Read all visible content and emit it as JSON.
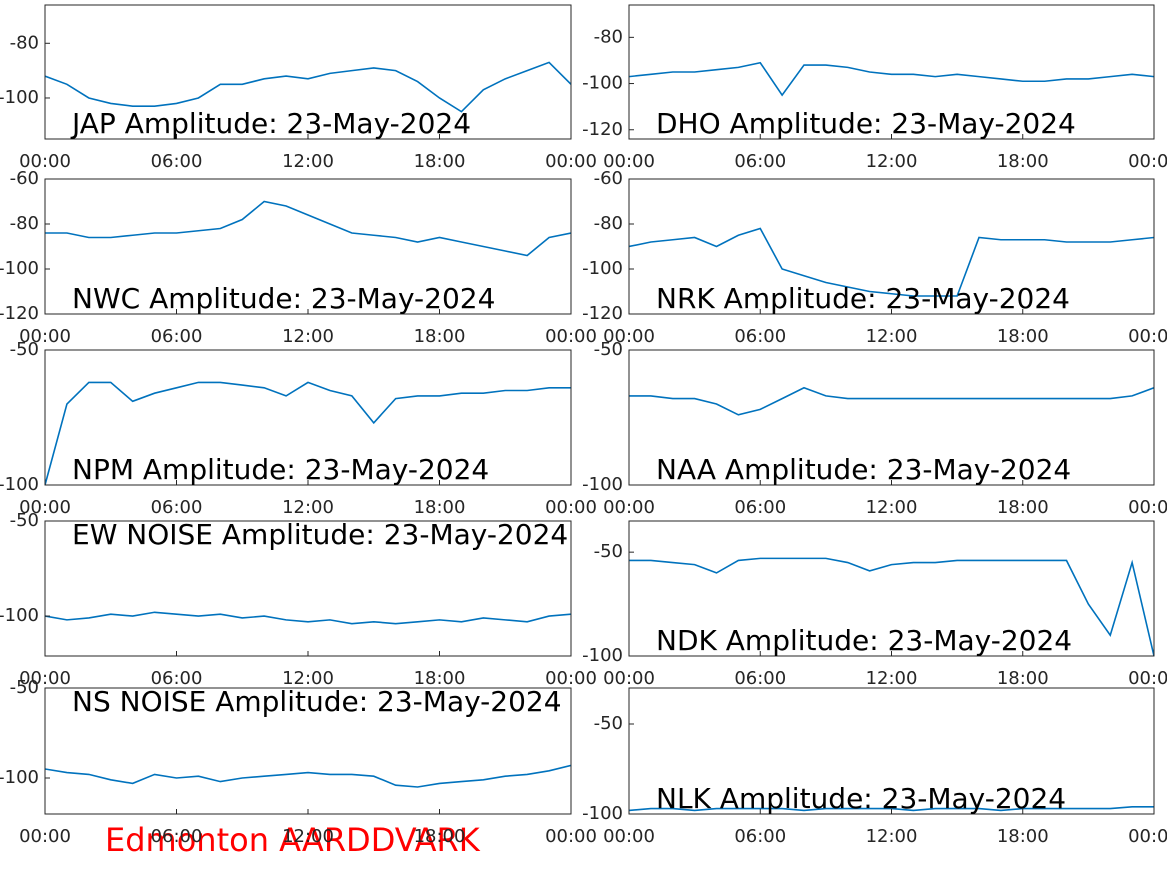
{
  "chart_data": [
    {
      "type": "line",
      "title": "JAP Amplitude: 23-May-2024",
      "x": [
        0,
        1,
        2,
        3,
        4,
        5,
        6,
        7,
        8,
        9,
        10,
        11,
        12,
        13,
        14,
        15,
        16,
        17,
        18,
        19,
        20,
        21,
        22,
        23,
        24
      ],
      "xlim": [
        0,
        24
      ],
      "xticks": [
        {
          "value": 0,
          "label": "00:00"
        },
        {
          "value": 6,
          "label": "06:00"
        },
        {
          "value": 12,
          "label": "12:00"
        },
        {
          "value": 18,
          "label": "18:00"
        },
        {
          "value": 24,
          "label": "00:00"
        }
      ],
      "ylim": [
        -115,
        -66
      ],
      "yticks": [
        -100,
        -80
      ],
      "color": "#0072bd",
      "values": [
        -92,
        -95,
        -100,
        -102,
        -103,
        -103,
        -102,
        -100,
        -95,
        -95,
        -93,
        -92,
        -93,
        -91,
        -90,
        -89,
        -90,
        -94,
        -100,
        -105,
        -97,
        -93,
        -90,
        -87,
        -95
      ]
    },
    {
      "type": "line",
      "title": "DHO Amplitude: 23-May-2024",
      "x": [
        0,
        1,
        2,
        3,
        4,
        5,
        6,
        7,
        8,
        9,
        10,
        11,
        12,
        13,
        14,
        15,
        16,
        17,
        18,
        19,
        20,
        21,
        22,
        23,
        24
      ],
      "xlim": [
        0,
        24
      ],
      "xticks": [
        {
          "value": 0,
          "label": "00:00"
        },
        {
          "value": 6,
          "label": "06:00"
        },
        {
          "value": 12,
          "label": "12:00"
        },
        {
          "value": 18,
          "label": "18:00"
        },
        {
          "value": 24,
          "label": "00:00"
        }
      ],
      "ylim": [
        -124,
        -66
      ],
      "yticks": [
        -120,
        -100,
        -80
      ],
      "color": "#0072bd",
      "values": [
        -97,
        -96,
        -95,
        -95,
        -94,
        -93,
        -91,
        -105,
        -92,
        -92,
        -93,
        -95,
        -96,
        -96,
        -97,
        -96,
        -97,
        -98,
        -99,
        -99,
        -98,
        -98,
        -97,
        -96,
        -97
      ]
    },
    {
      "type": "line",
      "title": "NWC Amplitude: 23-May-2024",
      "x": [
        0,
        1,
        2,
        3,
        4,
        5,
        6,
        7,
        8,
        9,
        10,
        11,
        12,
        13,
        14,
        15,
        16,
        17,
        18,
        19,
        20,
        21,
        22,
        23,
        24
      ],
      "xlim": [
        0,
        24
      ],
      "xticks": [
        {
          "value": 0,
          "label": "00:00"
        },
        {
          "value": 6,
          "label": "06:00"
        },
        {
          "value": 12,
          "label": "12:00"
        },
        {
          "value": 18,
          "label": "18:00"
        },
        {
          "value": 24,
          "label": "00:00"
        }
      ],
      "ylim": [
        -120,
        -60
      ],
      "yticks": [
        -120,
        -100,
        -80,
        -60
      ],
      "color": "#0072bd",
      "values": [
        -84,
        -84,
        -86,
        -86,
        -85,
        -84,
        -84,
        -83,
        -82,
        -78,
        -70,
        -72,
        -76,
        -80,
        -84,
        -85,
        -86,
        -88,
        -86,
        -88,
        -90,
        -92,
        -94,
        -86,
        -84
      ]
    },
    {
      "type": "line",
      "title": "NRK Amplitude: 23-May-2024",
      "x": [
        0,
        1,
        2,
        3,
        4,
        5,
        6,
        7,
        8,
        9,
        10,
        11,
        12,
        13,
        14,
        15,
        16,
        17,
        18,
        19,
        20,
        21,
        22,
        23,
        24
      ],
      "xlim": [
        0,
        24
      ],
      "xticks": [
        {
          "value": 0,
          "label": "00:00"
        },
        {
          "value": 6,
          "label": "06:00"
        },
        {
          "value": 12,
          "label": "12:00"
        },
        {
          "value": 18,
          "label": "18:00"
        },
        {
          "value": 24,
          "label": "00:00"
        }
      ],
      "ylim": [
        -120,
        -60
      ],
      "yticks": [
        -120,
        -100,
        -80,
        -60
      ],
      "color": "#0072bd",
      "values": [
        -90,
        -88,
        -87,
        -86,
        -90,
        -85,
        -82,
        -100,
        -103,
        -106,
        -108,
        -110,
        -111,
        -112,
        -112,
        -112,
        -86,
        -87,
        -87,
        -87,
        -88,
        -88,
        -88,
        -87,
        -86
      ]
    },
    {
      "type": "line",
      "title": "NPM Amplitude: 23-May-2024",
      "x": [
        0,
        1,
        2,
        3,
        4,
        5,
        6,
        7,
        8,
        9,
        10,
        11,
        12,
        13,
        14,
        15,
        16,
        17,
        18,
        19,
        20,
        21,
        22,
        23,
        24
      ],
      "xlim": [
        0,
        24
      ],
      "xticks": [
        {
          "value": 0,
          "label": "00:00"
        },
        {
          "value": 6,
          "label": "06:00"
        },
        {
          "value": 12,
          "label": "12:00"
        },
        {
          "value": 18,
          "label": "18:00"
        },
        {
          "value": 24,
          "label": "00:00"
        }
      ],
      "ylim": [
        -100,
        -50
      ],
      "yticks": [
        -100,
        -50
      ],
      "color": "#0072bd",
      "values": [
        -100,
        -70,
        -62,
        -62,
        -69,
        -66,
        -64,
        -62,
        -62,
        -63,
        -64,
        -67,
        -62,
        -65,
        -67,
        -77,
        -68,
        -67,
        -67,
        -66,
        -66,
        -65,
        -65,
        -64,
        -64
      ]
    },
    {
      "type": "line",
      "title": "NAA Amplitude: 23-May-2024",
      "x": [
        0,
        1,
        2,
        3,
        4,
        5,
        6,
        7,
        8,
        9,
        10,
        11,
        12,
        13,
        14,
        15,
        16,
        17,
        18,
        19,
        20,
        21,
        22,
        23,
        24
      ],
      "xlim": [
        0,
        24
      ],
      "xticks": [
        {
          "value": 0,
          "label": "00:00"
        },
        {
          "value": 6,
          "label": "06:00"
        },
        {
          "value": 12,
          "label": "12:00"
        },
        {
          "value": 18,
          "label": "18:00"
        },
        {
          "value": 24,
          "label": "00:00"
        }
      ],
      "ylim": [
        -100,
        -50
      ],
      "yticks": [
        -100,
        -50
      ],
      "color": "#0072bd",
      "values": [
        -67,
        -67,
        -68,
        -68,
        -70,
        -74,
        -72,
        -68,
        -64,
        -67,
        -68,
        -68,
        -68,
        -68,
        -68,
        -68,
        -68,
        -68,
        -68,
        -68,
        -68,
        -68,
        -68,
        -67,
        -64
      ]
    },
    {
      "type": "line",
      "title": "EW NOISE Amplitude: 23-May-2024",
      "x": [
        0,
        1,
        2,
        3,
        4,
        5,
        6,
        7,
        8,
        9,
        10,
        11,
        12,
        13,
        14,
        15,
        16,
        17,
        18,
        19,
        20,
        21,
        22,
        23,
        24
      ],
      "xlim": [
        0,
        24
      ],
      "xticks": [
        {
          "value": 0,
          "label": "00:00"
        },
        {
          "value": 6,
          "label": "06:00"
        },
        {
          "value": 12,
          "label": "12:00"
        },
        {
          "value": 18,
          "label": "18:00"
        },
        {
          "value": 24,
          "label": "00:00"
        }
      ],
      "ylim": [
        -121,
        -50
      ],
      "yticks": [
        -100,
        -50
      ],
      "color": "#0072bd",
      "values": [
        -100,
        -102,
        -101,
        -99,
        -100,
        -98,
        -99,
        -100,
        -99,
        -101,
        -100,
        -102,
        -103,
        -102,
        -104,
        -103,
        -104,
        -103,
        -102,
        -103,
        -101,
        -102,
        -103,
        -100,
        -99
      ]
    },
    {
      "type": "line",
      "title": "NDK Amplitude: 23-May-2024",
      "x": [
        0,
        1,
        2,
        3,
        4,
        5,
        6,
        7,
        8,
        9,
        10,
        11,
        12,
        13,
        14,
        15,
        16,
        17,
        18,
        19,
        20,
        21,
        22,
        23,
        24
      ],
      "xlim": [
        0,
        24
      ],
      "xticks": [
        {
          "value": 0,
          "label": "00:00"
        },
        {
          "value": 6,
          "label": "06:00"
        },
        {
          "value": 12,
          "label": "12:00"
        },
        {
          "value": 18,
          "label": "18:00"
        },
        {
          "value": 24,
          "label": "00:00"
        }
      ],
      "ylim": [
        -100,
        -35
      ],
      "yticks": [
        -100,
        -50
      ],
      "color": "#0072bd",
      "values": [
        -54,
        -54,
        -55,
        -56,
        -60,
        -54,
        -53,
        -53,
        -53,
        -53,
        -55,
        -59,
        -56,
        -55,
        -55,
        -54,
        -54,
        -54,
        -54,
        -54,
        -54,
        -75,
        -90,
        -55,
        -100
      ]
    },
    {
      "type": "line",
      "title": "NS NOISE Amplitude: 23-May-2024",
      "x": [
        0,
        1,
        2,
        3,
        4,
        5,
        6,
        7,
        8,
        9,
        10,
        11,
        12,
        13,
        14,
        15,
        16,
        17,
        18,
        19,
        20,
        21,
        22,
        23,
        24
      ],
      "xlim": [
        0,
        24
      ],
      "xticks": [
        {
          "value": 0,
          "label": "00:00"
        },
        {
          "value": 6,
          "label": "06:00"
        },
        {
          "value": 12,
          "label": "12:00"
        },
        {
          "value": 18,
          "label": "18:00"
        },
        {
          "value": 24,
          "label": "00:00"
        }
      ],
      "ylim": [
        -120,
        -50
      ],
      "yticks": [
        -100,
        -50
      ],
      "color": "#0072bd",
      "values": [
        -95,
        -97,
        -98,
        -101,
        -103,
        -98,
        -100,
        -99,
        -102,
        -100,
        -99,
        -98,
        -97,
        -98,
        -98,
        -99,
        -104,
        -105,
        -103,
        -102,
        -101,
        -99,
        -98,
        -96,
        -93
      ]
    },
    {
      "type": "line",
      "title": "NLK Amplitude: 23-May-2024",
      "x": [
        0,
        1,
        2,
        3,
        4,
        5,
        6,
        7,
        8,
        9,
        10,
        11,
        12,
        13,
        14,
        15,
        16,
        17,
        18,
        19,
        20,
        21,
        22,
        23,
        24
      ],
      "xlim": [
        0,
        24
      ],
      "xticks": [
        {
          "value": 0,
          "label": "00:00"
        },
        {
          "value": 6,
          "label": "06:00"
        },
        {
          "value": 12,
          "label": "12:00"
        },
        {
          "value": 18,
          "label": "18:00"
        },
        {
          "value": 24,
          "label": "00:00"
        }
      ],
      "ylim": [
        -100,
        -30
      ],
      "yticks": [
        -100,
        -50
      ],
      "color": "#0072bd",
      "values": [
        -98,
        -97,
        -97,
        -98,
        -97,
        -97,
        -97,
        -97,
        -98,
        -97,
        -97,
        -97,
        -97,
        -98,
        -97,
        -97,
        -97,
        -98,
        -97,
        -97,
        -97,
        -97,
        -97,
        -96,
        -96
      ]
    }
  ],
  "caption": "Edmonton AARDDVARK"
}
